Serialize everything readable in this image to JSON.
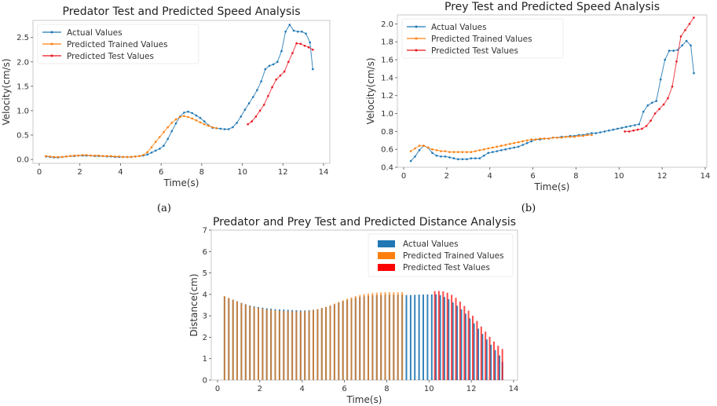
{
  "panel_labels": [
    "(a)",
    "(b)"
  ],
  "colors": {
    "actual": "#1f77b4",
    "trained": "#ff7f0e",
    "test": "#e8141e",
    "test_bar": "#ff0000"
  },
  "chart_data": [
    {
      "id": "predator",
      "type": "line",
      "title": "Predator Test and Predicted Speed Analysis",
      "xlabel": "Time(s)",
      "ylabel": "Velocity(cm/s)",
      "xlim": [
        -0.5,
        14.2
      ],
      "ylim": [
        -0.08,
        2.85
      ],
      "xticks": [
        "0",
        "2",
        "4",
        "6",
        "8",
        "10",
        "12",
        "14"
      ],
      "xtick_values": [
        0,
        2,
        4,
        6,
        8,
        10,
        12,
        14
      ],
      "yticks": [
        "0.0",
        "0.5",
        "1.0",
        "1.5",
        "2.0",
        "2.5"
      ],
      "ytick_values": [
        0,
        0.5,
        1.0,
        1.5,
        2.0,
        2.5
      ],
      "grid": false,
      "legend_position": "top-left",
      "series": [
        {
          "name": "Actual Values",
          "key": "actual",
          "x": [
            0.33,
            0.53,
            0.73,
            0.93,
            1.13,
            1.33,
            1.53,
            1.73,
            1.93,
            2.13,
            2.33,
            2.53,
            2.73,
            2.93,
            3.13,
            3.33,
            3.53,
            3.73,
            3.93,
            4.13,
            4.33,
            4.53,
            4.73,
            4.93,
            5.13,
            5.33,
            5.53,
            5.73,
            5.93,
            6.13,
            6.33,
            6.53,
            6.73,
            6.93,
            7.13,
            7.33,
            7.53,
            7.73,
            7.93,
            8.13,
            8.33,
            8.53,
            8.73,
            8.93,
            9.13,
            9.33,
            9.53,
            9.73,
            9.93,
            10.13,
            10.33,
            10.53,
            10.73,
            10.93,
            11.13,
            11.33,
            11.53,
            11.73,
            11.93,
            12.13,
            12.33,
            12.53,
            12.73,
            12.93,
            13.13,
            13.33,
            13.47
          ],
          "y": [
            0.06,
            0.05,
            0.04,
            0.04,
            0.05,
            0.06,
            0.07,
            0.07,
            0.08,
            0.08,
            0.08,
            0.08,
            0.07,
            0.07,
            0.07,
            0.06,
            0.06,
            0.05,
            0.05,
            0.05,
            0.05,
            0.05,
            0.06,
            0.07,
            0.08,
            0.1,
            0.14,
            0.18,
            0.22,
            0.28,
            0.42,
            0.58,
            0.74,
            0.88,
            0.96,
            0.98,
            0.95,
            0.9,
            0.85,
            0.78,
            0.7,
            0.65,
            0.64,
            0.63,
            0.62,
            0.62,
            0.66,
            0.75,
            0.88,
            1.02,
            1.15,
            1.28,
            1.42,
            1.6,
            1.85,
            1.92,
            1.95,
            2.0,
            2.22,
            2.62,
            2.76,
            2.64,
            2.62,
            2.62,
            2.58,
            2.4,
            1.85
          ]
        },
        {
          "name": "Predicted Trained Values",
          "key": "trained",
          "x": [
            0.33,
            0.53,
            0.73,
            0.93,
            1.13,
            1.33,
            1.53,
            1.73,
            1.93,
            2.13,
            2.33,
            2.53,
            2.73,
            2.93,
            3.13,
            3.33,
            3.53,
            3.73,
            3.93,
            4.13,
            4.33,
            4.53,
            4.73,
            4.93,
            5.13,
            5.33,
            5.53,
            5.73,
            5.93,
            6.13,
            6.33,
            6.53,
            6.73,
            6.93,
            7.13,
            7.33,
            7.53,
            7.73,
            7.93,
            8.13,
            8.33,
            8.53,
            8.73
          ],
          "y": [
            0.07,
            0.06,
            0.05,
            0.05,
            0.05,
            0.06,
            0.07,
            0.08,
            0.08,
            0.09,
            0.09,
            0.08,
            0.08,
            0.08,
            0.07,
            0.07,
            0.07,
            0.06,
            0.06,
            0.05,
            0.05,
            0.05,
            0.06,
            0.07,
            0.09,
            0.15,
            0.25,
            0.36,
            0.46,
            0.56,
            0.66,
            0.75,
            0.82,
            0.87,
            0.89,
            0.87,
            0.84,
            0.8,
            0.76,
            0.72,
            0.69,
            0.66,
            0.64
          ]
        },
        {
          "name": "Predicted Test Values",
          "key": "test",
          "x": [
            10.27,
            10.47,
            10.67,
            10.87,
            11.07,
            11.27,
            11.47,
            11.67,
            11.87,
            12.07,
            12.27,
            12.47,
            12.67,
            12.87,
            13.07,
            13.27,
            13.47
          ],
          "y": [
            0.72,
            0.78,
            0.88,
            1.0,
            1.12,
            1.3,
            1.48,
            1.64,
            1.72,
            1.8,
            2.0,
            2.18,
            2.38,
            2.37,
            2.33,
            2.3,
            2.25
          ]
        }
      ]
    },
    {
      "id": "prey",
      "type": "line",
      "title": "Prey Test and Predicted Speed Analysis",
      "xlabel": "Time(s)",
      "ylabel": "Velocity(cm/s)",
      "xlim": [
        -0.3,
        14.2
      ],
      "ylim": [
        0.4,
        2.1
      ],
      "xticks": [
        "0",
        "2",
        "4",
        "6",
        "8",
        "10",
        "12",
        "14"
      ],
      "xtick_values": [
        0,
        2,
        4,
        6,
        8,
        10,
        12,
        14
      ],
      "yticks": [
        "0.4",
        "0.6",
        "0.8",
        "1.0",
        "1.2",
        "1.4",
        "1.6",
        "1.8",
        "2.0"
      ],
      "ytick_values": [
        0.4,
        0.6,
        0.8,
        1.0,
        1.2,
        1.4,
        1.6,
        1.8,
        2.0
      ],
      "grid": false,
      "legend_position": "top-left",
      "series": [
        {
          "name": "Actual Values",
          "key": "actual",
          "x": [
            0.33,
            0.53,
            0.73,
            0.93,
            1.13,
            1.33,
            1.53,
            1.73,
            1.93,
            2.13,
            2.33,
            2.53,
            2.73,
            2.93,
            3.13,
            3.33,
            3.53,
            3.73,
            3.93,
            4.13,
            4.33,
            4.53,
            4.73,
            4.93,
            5.13,
            5.33,
            5.53,
            5.73,
            5.93,
            6.13,
            6.33,
            6.53,
            6.73,
            6.93,
            7.13,
            7.33,
            7.53,
            7.73,
            7.93,
            8.13,
            8.33,
            8.53,
            8.73,
            8.93,
            9.13,
            9.33,
            9.53,
            9.73,
            9.93,
            10.13,
            10.33,
            10.53,
            10.73,
            10.93,
            11.13,
            11.33,
            11.53,
            11.73,
            11.93,
            12.13,
            12.33,
            12.53,
            12.73,
            12.93,
            13.13,
            13.33,
            13.47
          ],
          "y": [
            0.47,
            0.52,
            0.59,
            0.64,
            0.62,
            0.56,
            0.53,
            0.52,
            0.52,
            0.51,
            0.5,
            0.49,
            0.49,
            0.49,
            0.5,
            0.5,
            0.5,
            0.53,
            0.56,
            0.57,
            0.58,
            0.59,
            0.6,
            0.61,
            0.62,
            0.63,
            0.65,
            0.67,
            0.69,
            0.71,
            0.71,
            0.72,
            0.72,
            0.73,
            0.73,
            0.74,
            0.74,
            0.75,
            0.75,
            0.76,
            0.76,
            0.77,
            0.78,
            0.78,
            0.79,
            0.8,
            0.81,
            0.82,
            0.83,
            0.84,
            0.85,
            0.86,
            0.87,
            0.88,
            1.02,
            1.09,
            1.12,
            1.14,
            1.38,
            1.6,
            1.7,
            1.7,
            1.71,
            1.76,
            1.81,
            1.76,
            1.45
          ]
        },
        {
          "name": "Predicted Trained Values",
          "key": "trained",
          "x": [
            0.33,
            0.53,
            0.73,
            0.93,
            1.13,
            1.33,
            1.53,
            1.73,
            1.93,
            2.13,
            2.33,
            2.53,
            2.73,
            2.93,
            3.13,
            3.33,
            3.53,
            3.73,
            3.93,
            4.13,
            4.33,
            4.53,
            4.73,
            4.93,
            5.13,
            5.33,
            5.53,
            5.73,
            5.93,
            6.13,
            6.33,
            6.53,
            6.73,
            6.93,
            7.13,
            7.33,
            7.53,
            7.73,
            7.93,
            8.13,
            8.33,
            8.53,
            8.73
          ],
          "y": [
            0.58,
            0.61,
            0.64,
            0.64,
            0.62,
            0.6,
            0.59,
            0.58,
            0.58,
            0.57,
            0.57,
            0.57,
            0.57,
            0.57,
            0.57,
            0.58,
            0.59,
            0.6,
            0.61,
            0.62,
            0.63,
            0.64,
            0.65,
            0.66,
            0.67,
            0.68,
            0.69,
            0.7,
            0.71,
            0.71,
            0.72,
            0.72,
            0.72,
            0.73,
            0.73,
            0.73,
            0.74,
            0.74,
            0.74,
            0.75,
            0.75,
            0.76,
            0.76
          ]
        },
        {
          "name": "Predicted Test Values",
          "key": "test",
          "x": [
            10.27,
            10.47,
            10.67,
            10.87,
            11.07,
            11.27,
            11.47,
            11.67,
            11.87,
            12.07,
            12.27,
            12.47,
            12.67,
            12.87,
            13.07,
            13.27,
            13.47
          ],
          "y": [
            0.8,
            0.8,
            0.81,
            0.82,
            0.83,
            0.86,
            0.92,
            1.0,
            1.05,
            1.1,
            1.17,
            1.3,
            1.58,
            1.86,
            1.93,
            2.0,
            2.07
          ]
        }
      ]
    },
    {
      "id": "distance",
      "type": "bar",
      "title": "Predator and Prey Test and Predicted Distance Analysis",
      "xlabel": "Time(s)",
      "ylabel": "Distance(cm)",
      "xlim": [
        -0.3,
        14.2
      ],
      "ylim": [
        0,
        7
      ],
      "xticks": [
        "0",
        "2",
        "4",
        "6",
        "8",
        "10",
        "12",
        "14"
      ],
      "xtick_values": [
        0,
        2,
        4,
        6,
        8,
        10,
        12,
        14
      ],
      "yticks": [
        "0",
        "1",
        "2",
        "3",
        "4",
        "5",
        "6",
        "7"
      ],
      "ytick_values": [
        0,
        1,
        2,
        3,
        4,
        5,
        6,
        7
      ],
      "grid": false,
      "legend_position": "top-right",
      "legend": [
        "Actual Values",
        "Predicted Trained  Values",
        "Predicted Test Values"
      ],
      "series": [
        {
          "name": "Actual Values",
          "key": "actual",
          "x": [
            0.33,
            0.53,
            0.73,
            0.93,
            1.13,
            1.33,
            1.53,
            1.73,
            1.93,
            2.13,
            2.33,
            2.53,
            2.73,
            2.93,
            3.13,
            3.33,
            3.53,
            3.73,
            3.93,
            4.13,
            4.33,
            4.53,
            4.73,
            4.93,
            5.13,
            5.33,
            5.53,
            5.73,
            5.93,
            6.13,
            6.33,
            6.53,
            6.73,
            6.93,
            7.13,
            7.33,
            7.53,
            7.73,
            7.93,
            8.13,
            8.33,
            8.53,
            8.73,
            8.93,
            9.13,
            9.33,
            9.53,
            9.73,
            9.93,
            10.13,
            10.33,
            10.53,
            10.73,
            10.93,
            11.13,
            11.33,
            11.53,
            11.73,
            11.93,
            12.13,
            12.33,
            12.53,
            12.73,
            12.93,
            13.13,
            13.33,
            13.47
          ],
          "y": [
            3.9,
            3.82,
            3.75,
            3.68,
            3.6,
            3.54,
            3.48,
            3.44,
            3.41,
            3.38,
            3.35,
            3.33,
            3.31,
            3.3,
            3.29,
            3.28,
            3.27,
            3.26,
            3.25,
            3.25,
            3.26,
            3.28,
            3.31,
            3.36,
            3.41,
            3.47,
            3.54,
            3.61,
            3.68,
            3.74,
            3.79,
            3.84,
            3.88,
            3.91,
            3.93,
            3.95,
            3.96,
            3.97,
            3.98,
            3.98,
            3.98,
            3.98,
            3.98,
            3.97,
            3.97,
            3.98,
            3.99,
            3.99,
            4.0,
            4.0,
            4.0,
            3.96,
            3.88,
            3.77,
            3.63,
            3.47,
            3.3,
            3.1,
            2.88,
            2.65,
            2.4,
            2.15,
            1.9,
            1.65,
            1.4,
            1.15,
            0.85
          ]
        },
        {
          "name": "Predicted Trained  Values",
          "key": "trained",
          "x": [
            0.33,
            0.53,
            0.73,
            0.93,
            1.13,
            1.33,
            1.53,
            1.73,
            1.93,
            2.13,
            2.33,
            2.53,
            2.73,
            2.93,
            3.13,
            3.33,
            3.53,
            3.73,
            3.93,
            4.13,
            4.33,
            4.53,
            4.73,
            4.93,
            5.13,
            5.33,
            5.53,
            5.73,
            5.93,
            6.13,
            6.33,
            6.53,
            6.73,
            6.93,
            7.13,
            7.33,
            7.53,
            7.73,
            7.93,
            8.13,
            8.33,
            8.53,
            8.73
          ],
          "y": [
            3.92,
            3.84,
            3.76,
            3.68,
            3.6,
            3.53,
            3.46,
            3.41,
            3.37,
            3.33,
            3.3,
            3.28,
            3.26,
            3.24,
            3.23,
            3.22,
            3.21,
            3.21,
            3.21,
            3.22,
            3.24,
            3.27,
            3.31,
            3.36,
            3.42,
            3.49,
            3.57,
            3.65,
            3.73,
            3.8,
            3.86,
            3.92,
            3.97,
            4.01,
            4.04,
            4.06,
            4.08,
            4.09,
            4.1,
            4.1,
            4.1,
            4.1,
            4.1
          ]
        },
        {
          "name": "Predicted Test Values",
          "key": "test",
          "x": [
            10.27,
            10.47,
            10.67,
            10.87,
            11.07,
            11.27,
            11.47,
            11.67,
            11.87,
            12.07,
            12.27,
            12.47,
            12.67,
            12.87,
            13.07,
            13.27,
            13.47
          ],
          "y": [
            4.15,
            4.16,
            4.14,
            4.08,
            3.98,
            3.84,
            3.66,
            3.46,
            3.24,
            3.0,
            2.76,
            2.5,
            2.26,
            2.02,
            1.8,
            1.6,
            1.45
          ]
        }
      ]
    }
  ]
}
